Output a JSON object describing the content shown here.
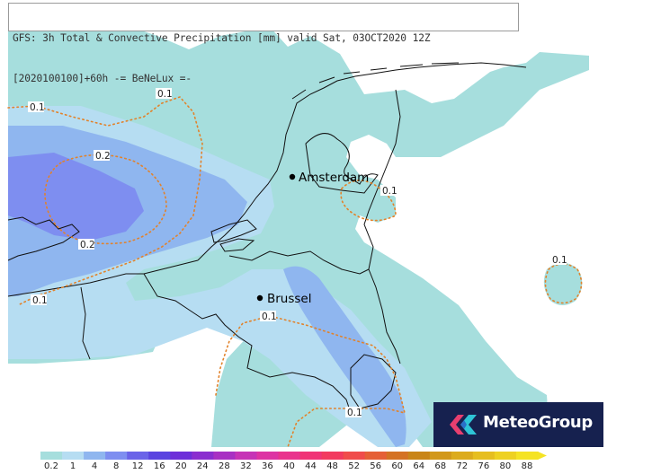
{
  "header": {
    "line1": "GFS: 3h Total & Convective Precipitation [mm] valid Sat, 03OCT2020 12Z",
    "line2": "[2020100100]+60h -= BeNeLux =-"
  },
  "cities": [
    {
      "name": "Amsterdam"
    },
    {
      "name": "Brussel"
    }
  ],
  "contour_labels": [
    "0.1",
    "0.1",
    "0.2",
    "0.2",
    "0.1",
    "0.1",
    "0.1",
    "0.1",
    "0.1"
  ],
  "legend": {
    "labels": [
      "0.2",
      "1",
      "4",
      "8",
      "12",
      "16",
      "20",
      "24",
      "28",
      "32",
      "36",
      "40",
      "44",
      "48",
      "52",
      "56",
      "60",
      "64",
      "68",
      "72",
      "76",
      "80",
      "88"
    ],
    "colors": [
      "#a6dedd",
      "#b6ddf2",
      "#8fb6ef",
      "#7e8ef0",
      "#6a63e8",
      "#5a44e0",
      "#6d2fd9",
      "#8a2ecf",
      "#a830c3",
      "#c633b6",
      "#dd33a3",
      "#e9338d",
      "#f03476",
      "#f23a5f",
      "#f04c4b",
      "#e56036",
      "#d47223",
      "#c98517",
      "#d2981a",
      "#dcab1d",
      "#e6be20",
      "#eed122",
      "#f5e324"
    ]
  },
  "brand": {
    "name": "MeteoGroup",
    "background": "#16214f",
    "logo_colors": [
      "#e83f6f",
      "#2ec4d6"
    ]
  },
  "colors": {
    "land_background": "#ffffff",
    "precip_light": "#a6dedd",
    "precip_low": "#b6ddf2",
    "precip_mid": "#8fb6ef",
    "precip_high": "#7e8ef0",
    "contour": "#e2822a",
    "coastline": "#111111"
  }
}
